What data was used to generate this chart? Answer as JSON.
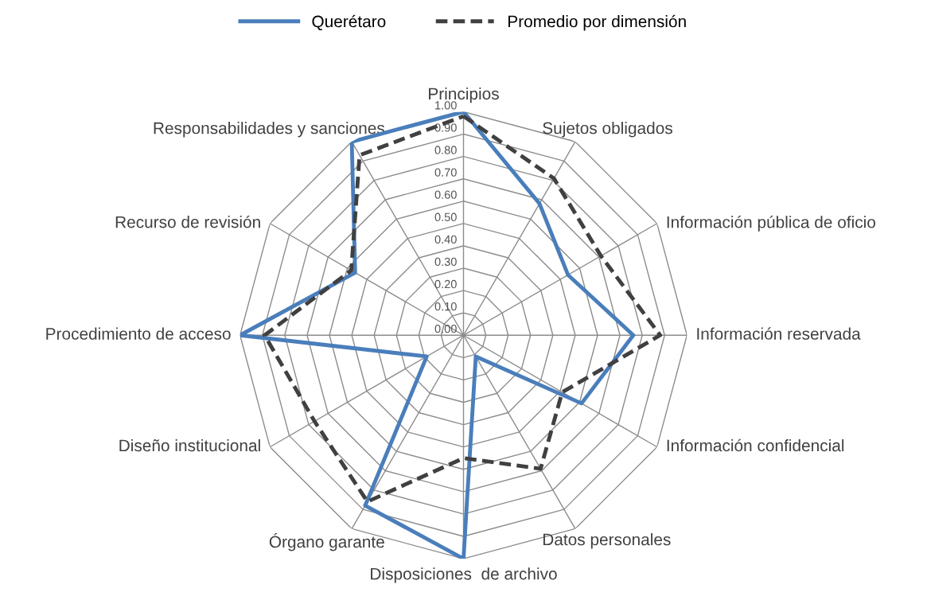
{
  "chart_data": {
    "type": "radar",
    "categories": [
      "Principios",
      "Sujetos obligados",
      "Información pública de oficio",
      "Información reservada",
      "Información confidencial",
      "Datos personales",
      "Disposiciones  de archivo",
      "Órgano garante",
      "Diseño institucional",
      "Procedimiento de acceso",
      "Recurso de revisión",
      "Responsabilidades y sanciones"
    ],
    "series": [
      {
        "name": "Querétaro",
        "color": "#4a7ebb",
        "line_style": "solid",
        "values": [
          1.0,
          0.68,
          0.54,
          0.76,
          0.61,
          0.11,
          1.0,
          0.88,
          0.19,
          1.0,
          0.56,
          1.0
        ]
      },
      {
        "name": "Promedio por dimensión",
        "color": "#404040",
        "line_style": "dashed",
        "values": [
          0.98,
          0.81,
          0.71,
          0.88,
          0.51,
          0.69,
          0.55,
          0.86,
          0.77,
          0.89,
          0.58,
          0.93
        ]
      }
    ],
    "ylim": [
      0,
      1
    ],
    "yticks": [
      {
        "value": 0,
        "label": "0.00"
      },
      {
        "value": 0.1,
        "label": "0.10"
      },
      {
        "value": 0.2,
        "label": "0.20"
      },
      {
        "value": 0.3,
        "label": "0.30"
      },
      {
        "value": 0.4,
        "label": "0.40"
      },
      {
        "value": 0.5,
        "label": "0.50"
      },
      {
        "value": 0.6,
        "label": "0.60"
      },
      {
        "value": 0.7,
        "label": "0.70"
      },
      {
        "value": 0.8,
        "label": "0.80"
      },
      {
        "value": 0.9,
        "label": "0.90"
      },
      {
        "value": 1.0,
        "label": "1.00"
      }
    ],
    "grid": true,
    "legend": "top",
    "marker": "none"
  }
}
